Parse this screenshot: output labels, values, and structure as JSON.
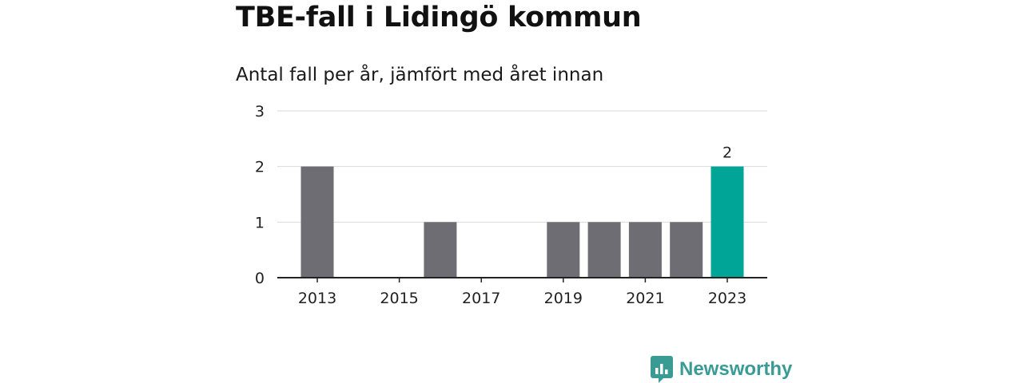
{
  "title": "TBE-fall i Lidingö kommun",
  "subtitle": "Antal fall per år, jämfört med året innan",
  "brand": {
    "name": "Newsworthy",
    "color": "#3a9b94",
    "icon": "newsworthy-logo-icon"
  },
  "colors": {
    "bar": "#6e6d73",
    "highlight": "#00a598",
    "grid": "#d9d9d9",
    "axis": "#222222"
  },
  "chart_data": {
    "type": "bar",
    "categories": [
      "2013",
      "2014",
      "2015",
      "2016",
      "2017",
      "2018",
      "2019",
      "2020",
      "2021",
      "2022",
      "2023"
    ],
    "values": [
      2,
      0,
      0,
      1,
      0,
      0,
      1,
      1,
      1,
      1,
      2
    ],
    "x_tick_labels": [
      "2013",
      "2015",
      "2017",
      "2019",
      "2021",
      "2023"
    ],
    "y_ticks": [
      "0",
      "1",
      "2",
      "3"
    ],
    "ylim": [
      0,
      3
    ],
    "highlight_category": "2023",
    "data_labels": [
      {
        "category": "2023",
        "text": "2"
      }
    ],
    "grid": true,
    "legend": "none",
    "xlabel": "",
    "ylabel": ""
  }
}
